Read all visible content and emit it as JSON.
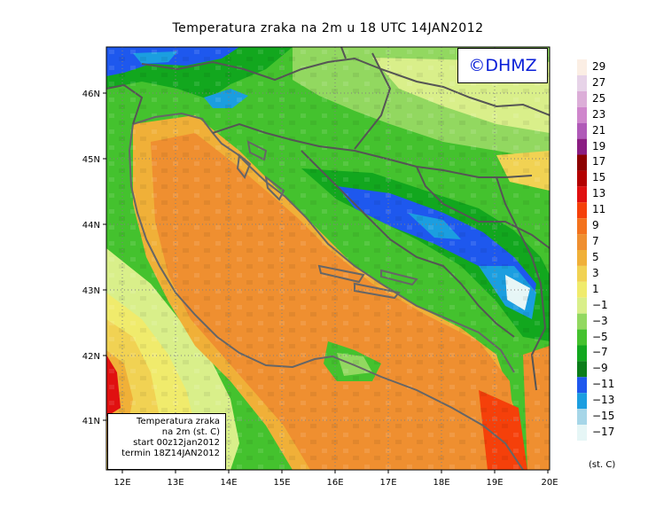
{
  "title": "Temperatura zraka na 2m u 18 UTC 14JAN2012",
  "watermark": "©DHMZ",
  "info_box": {
    "line1": "Temperatura zraka",
    "line2": "na 2m (st. C)",
    "line3": "start 00z12jan2012",
    "line4": "termin 18Z14JAN2012"
  },
  "axes": {
    "longitude_labels": [
      "12E",
      "13E",
      "14E",
      "15E",
      "16E",
      "17E",
      "18E",
      "19E",
      "20E"
    ],
    "latitude_labels": [
      "41N",
      "42N",
      "43N",
      "44N",
      "45N",
      "46N"
    ]
  },
  "colorbar": {
    "labels": [
      "29",
      "27",
      "25",
      "23",
      "21",
      "19",
      "17",
      "15",
      "13",
      "11",
      "9",
      "7",
      "5",
      "3",
      "1",
      "−1",
      "−3",
      "−5",
      "−7",
      "−9",
      "−11",
      "−13",
      "−15",
      "−17"
    ],
    "colors": [
      "#fbeee4",
      "#e7d3e8",
      "#dcaed8",
      "#cf86cc",
      "#b05ab8",
      "#8a1d82",
      "#8c0000",
      "#b30000",
      "#e01010",
      "#f5400a",
      "#f3721d",
      "#ef8f30",
      "#f0b038",
      "#f1d253",
      "#f0eb6c",
      "#d9ef8a",
      "#92d860",
      "#44c22e",
      "#12a71e",
      "#0b7d1a",
      "#1e58ee",
      "#1b9ee0",
      "#a6d6e8",
      "#e6f6f6"
    ],
    "units": "(st. C)"
  }
}
